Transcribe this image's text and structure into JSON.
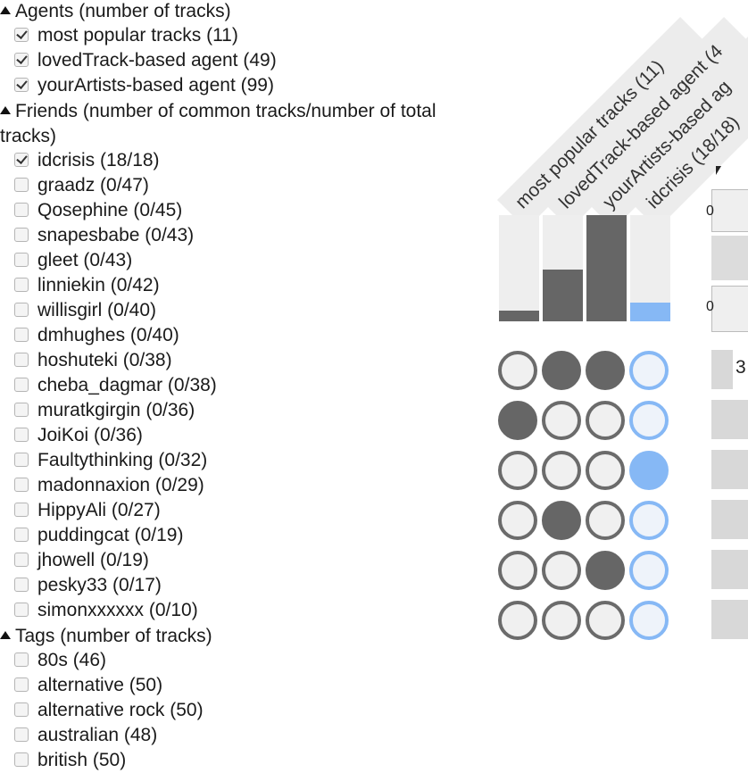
{
  "filters": {
    "agents": {
      "title": "Agents (number of tracks)",
      "items": [
        {
          "label": "most popular tracks (11)",
          "checked": true
        },
        {
          "label": "lovedTrack-based agent (49)",
          "checked": true
        },
        {
          "label": "yourArtists-based agent (99)",
          "checked": true
        }
      ]
    },
    "friends": {
      "title": "Friends (number of common tracks/number of total tracks)",
      "items": [
        {
          "label": "idcrisis (18/18)",
          "checked": true
        },
        {
          "label": "graadz (0/47)",
          "checked": false
        },
        {
          "label": "Qosephine (0/45)",
          "checked": false
        },
        {
          "label": "snapesbabe (0/43)",
          "checked": false
        },
        {
          "label": "gleet (0/43)",
          "checked": false
        },
        {
          "label": "linniekin (0/42)",
          "checked": false
        },
        {
          "label": "willisgirl (0/40)",
          "checked": false
        },
        {
          "label": "dmhughes (0/40)",
          "checked": false
        },
        {
          "label": "hoshuteki (0/38)",
          "checked": false
        },
        {
          "label": "cheba_dagmar (0/38)",
          "checked": false
        },
        {
          "label": "muratkgirgin (0/36)",
          "checked": false
        },
        {
          "label": "JoiKoi (0/36)",
          "checked": false
        },
        {
          "label": "Faultythinking (0/32)",
          "checked": false
        },
        {
          "label": "madonnaxion (0/29)",
          "checked": false
        },
        {
          "label": "HippyAli (0/27)",
          "checked": false
        },
        {
          "label": "puddingcat (0/19)",
          "checked": false
        },
        {
          "label": "jhowell (0/19)",
          "checked": false
        },
        {
          "label": "pesky33 (0/17)",
          "checked": false
        },
        {
          "label": "simonxxxxxx (0/10)",
          "checked": false
        }
      ]
    },
    "tags": {
      "title": "Tags (number of tracks)",
      "items": [
        {
          "label": "80s (46)",
          "checked": false
        },
        {
          "label": "alternative (50)",
          "checked": false
        },
        {
          "label": "alternative rock (50)",
          "checked": false
        },
        {
          "label": "australian (48)",
          "checked": false
        },
        {
          "label": "british (50)",
          "checked": false
        }
      ]
    }
  },
  "matrix": {
    "columns": [
      {
        "label": "most popular tracks (11)",
        "fill": 0.1,
        "color": "#666666"
      },
      {
        "label": "lovedTrack-based agent (4",
        "fill": 0.49,
        "color": "#666666"
      },
      {
        "label": "yourArtists-based ag",
        "fill": 1.0,
        "color": "#666666"
      },
      {
        "label": "idcrisis (18/18)",
        "fill": 0.18,
        "color": "#86b8f5"
      }
    ],
    "rows": [
      [
        false,
        true,
        true,
        false
      ],
      [
        true,
        false,
        false,
        false
      ],
      [
        false,
        false,
        false,
        true
      ],
      [
        false,
        true,
        false,
        false
      ],
      [
        false,
        false,
        true,
        false
      ],
      [
        false,
        false,
        false,
        false
      ]
    ],
    "axis_zero_1": "0",
    "axis_zero_2": "0",
    "side_value": "3"
  }
}
